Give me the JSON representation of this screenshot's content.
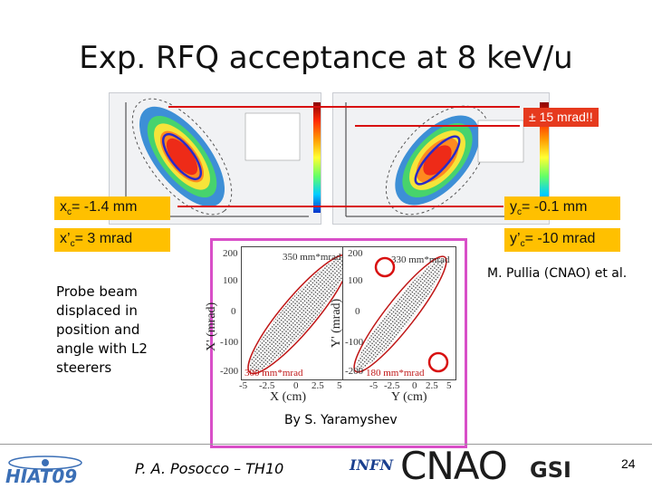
{
  "slide": {
    "title": "Exp. RFQ acceptance at 8 keV/u",
    "page_number": "24"
  },
  "callouts": {
    "xc": {
      "symbol": "x",
      "sub": "c",
      "rest": "= -1.4 mm"
    },
    "xpc": {
      "symbol": "x’",
      "sub": "c",
      "rest": "= 3 mrad"
    },
    "yc": {
      "symbol": "y",
      "sub": "c",
      "rest": "= -0.1 mm"
    },
    "ypc": {
      "symbol": "y’",
      "sub": "c",
      "rest": "= -10 mrad"
    },
    "mrad": "± 15 mrad!!"
  },
  "credits": {
    "pullia": "M. Pullia (CNAO) et al.",
    "yaramyshev": "By S. Yaramyshev",
    "author": "P. A. Posocco – TH10"
  },
  "probe_text": "Probe beam displaced in position and angle with L2 steerers",
  "sim_plots": {
    "left": {
      "xlabel": "X (cm)",
      "ylabel": "X' (mrad)",
      "top_note": "350 mm*mrad",
      "bottom_note": "300 mm*mrad",
      "yticks": [
        "200",
        "100",
        "0",
        "-100",
        "-200"
      ],
      "xticks": [
        "-5",
        "-2.5",
        "0",
        "2.5",
        "5"
      ]
    },
    "right": {
      "xlabel": "Y (cm)",
      "ylabel": "Y' (mrad)",
      "top_note": "330 mm*mrad",
      "bottom_note": "180 mm*mrad",
      "yticks": [
        "200",
        "100",
        "0",
        "-100",
        "-200"
      ],
      "xticks": [
        "-5",
        "-2.5",
        "0",
        "2.5",
        "5"
      ]
    }
  },
  "logos": {
    "hiat": "HIAT09",
    "infn": "INFN",
    "cnao": "CNAO",
    "gsi": "GSI"
  },
  "colors": {
    "callout_orange": "#ffc000",
    "callout_red": "#e63a1e",
    "red_line": "#d81010",
    "sim_frame": "#d94fc8"
  }
}
